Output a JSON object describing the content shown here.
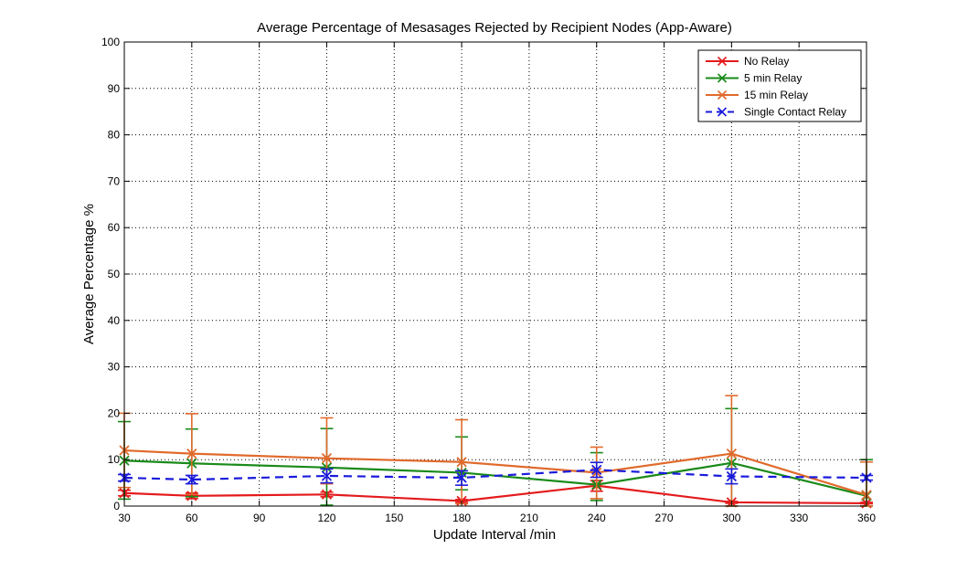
{
  "chart_data": {
    "type": "line",
    "title": "Average Percentage of Mesasages Rejected by Recipient Nodes (App-Aware)",
    "xlabel": "Update Interval /min",
    "ylabel": "Average Percentage %",
    "xlim": [
      30,
      360
    ],
    "ylim": [
      0,
      100
    ],
    "xticks": [
      30,
      60,
      90,
      120,
      150,
      180,
      210,
      240,
      270,
      300,
      330,
      360
    ],
    "yticks": [
      0,
      10,
      20,
      30,
      40,
      50,
      60,
      70,
      80,
      90,
      100
    ],
    "grid": true,
    "legend_position": "top-right",
    "x": [
      30,
      60,
      120,
      180,
      240,
      300,
      360
    ],
    "series": [
      {
        "name": "No Relay",
        "color": "#e41a1c",
        "dash": "solid",
        "values": [
          2.8,
          2.2,
          2.5,
          1.1,
          4.4,
          0.8,
          0.6
        ],
        "err_low": [
          2.2,
          1.6,
          2.0,
          0.8,
          3.2,
          0.6,
          0.5
        ],
        "err_high": [
          3.4,
          2.8,
          3.0,
          1.4,
          5.5,
          1.0,
          0.8
        ]
      },
      {
        "name": "5 min Relay",
        "color": "#1a8a1a",
        "dash": "solid",
        "values": [
          9.8,
          9.2,
          8.3,
          7.2,
          4.6,
          9.3,
          2.2
        ],
        "err_low": [
          1.5,
          2.0,
          0.2,
          3.5,
          1.2,
          0.0,
          0.0
        ],
        "err_high": [
          18.2,
          16.6,
          16.7,
          14.9,
          11.5,
          21.0,
          10.0
        ]
      },
      {
        "name": "15 min Relay",
        "color": "#e06a2c",
        "dash": "solid",
        "values": [
          12.0,
          11.3,
          10.3,
          9.5,
          7.2,
          11.3,
          2.4
        ],
        "err_low": [
          4.0,
          2.5,
          4.8,
          0.5,
          1.6,
          0.0,
          0.0
        ],
        "err_high": [
          20.0,
          19.9,
          19.0,
          18.6,
          12.7,
          23.8,
          9.5
        ]
      },
      {
        "name": "Single Contact Relay",
        "color": "#1a1adc",
        "dash": "dashed",
        "values": [
          6.1,
          5.7,
          6.5,
          6.1,
          7.8,
          6.4,
          6.1
        ],
        "err_low": [
          5.4,
          4.8,
          5.0,
          4.5,
          6.2,
          4.8,
          5.6
        ],
        "err_high": [
          6.8,
          6.6,
          8.0,
          7.6,
          9.4,
          8.0,
          6.6
        ]
      }
    ]
  }
}
